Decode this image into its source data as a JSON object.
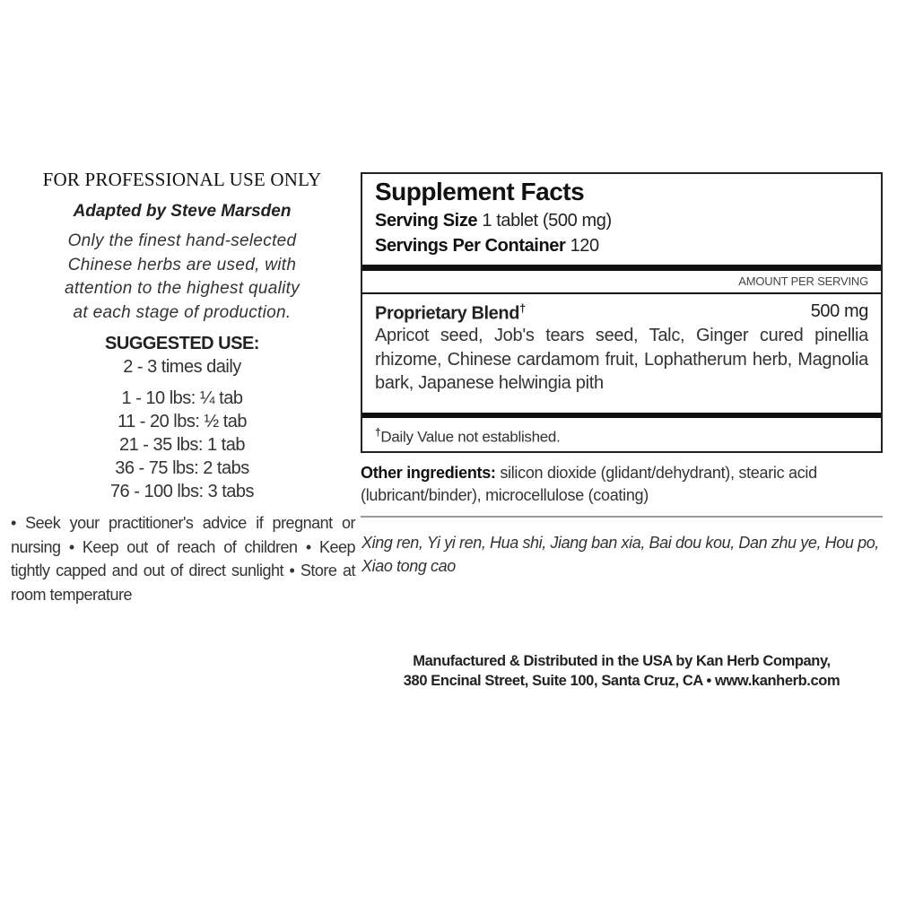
{
  "left": {
    "header": "FOR PROFESSIONAL USE ONLY",
    "adapted_by": "Adapted by Steve Marsden",
    "description_lines": [
      "Only the finest hand-selected",
      "Chinese herbs are used, with",
      "attention to the highest quality",
      "at each stage of production."
    ],
    "suggested_use_title": "SUGGESTED USE:",
    "frequency": "2 - 3 times daily",
    "dosages": [
      "1 - 10 lbs: ¼ tab",
      "11 - 20 lbs: ½ tab",
      "21 - 35 lbs: 1 tab",
      "36 - 75 lbs: 2 tabs",
      "76 - 100 lbs: 3 tabs"
    ],
    "warnings": "• Seek your practitioner's advice if pregnant or nursing • Keep out of reach of children • Keep tightly capped and out of direct sunlight • Store at room temperature"
  },
  "facts": {
    "title": "Supplement Facts",
    "serving_size_label": "Serving Size",
    "serving_size_value": "1 tablet (500 mg)",
    "servings_label": "Servings Per Container",
    "servings_value": "120",
    "amount_header": "AMOUNT PER SERVING",
    "blend_label": "Proprietary Blend",
    "blend_mark": "†",
    "blend_amount": "500 mg",
    "ingredients": "Apricot seed, Job's tears seed, Talc, Ginger cured pinellia rhizome, Chinese cardamom fruit, Lophatherum herb, Magnolia bark, Japanese helwingia  pith",
    "dv_mark": "†",
    "dv_note": "Daily Value not established."
  },
  "other": {
    "label": "Other ingredients:",
    "text": "silicon dioxide (glidant/dehydrant), stearic acid (lubricant/binder), microcellulose (coating)"
  },
  "pinyin": "Xing ren, Yi yi ren, Hua shi, Jiang ban xia, Bai dou kou, Dan zhu ye, Hou po, Xiao tong cao",
  "manufacturer": {
    "line1": "Manufactured & Distributed in the USA by Kan Herb Company,",
    "line2": "380 Encinal Street, Suite 100, Santa Cruz, CA • www.kanherb.com"
  }
}
